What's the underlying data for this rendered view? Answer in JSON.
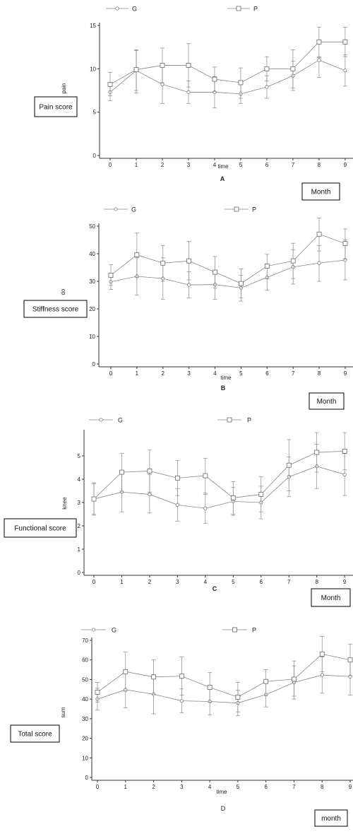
{
  "chart_data": [
    {
      "type": "line",
      "panel": "A",
      "box_label": "Pain score",
      "unit_label": "Month",
      "xlabel": "time",
      "ylabel": "pain",
      "x": [
        0,
        1,
        2,
        3,
        4,
        5,
        6,
        7,
        8,
        9
      ],
      "ylim": [
        0,
        15
      ],
      "yticks": [
        0,
        5,
        10,
        15
      ],
      "legend": "top",
      "series": [
        {
          "name": "G",
          "marker": "circle",
          "values": [
            7.3,
            9.8,
            8.2,
            7.3,
            7.3,
            7.1,
            7.9,
            9.2,
            11.0,
            9.8
          ],
          "lower": [
            6.3,
            7.5,
            6.0,
            6.0,
            5.5,
            6.0,
            6.6,
            7.5,
            9.0,
            8.0
          ],
          "upper": [
            8.3,
            12.1,
            10.4,
            8.6,
            9.1,
            8.2,
            9.2,
            10.9,
            11.4,
            11.6
          ]
        },
        {
          "name": "P",
          "marker": "square",
          "values": [
            8.2,
            9.9,
            10.4,
            10.4,
            8.8,
            8.4,
            10.0,
            10.0,
            13.1,
            13.1
          ],
          "lower": [
            6.9,
            7.2,
            8.4,
            7.9,
            7.4,
            6.6,
            8.6,
            7.8,
            11.3,
            11.4
          ],
          "upper": [
            9.6,
            12.2,
            12.4,
            12.9,
            10.2,
            10.1,
            11.4,
            12.2,
            14.8,
            14.8
          ]
        }
      ]
    },
    {
      "type": "line",
      "panel": "B",
      "box_label": "Stiffness  score",
      "unit_label": "Month",
      "xlabel": "time",
      "ylabel": "do",
      "x": [
        0,
        1,
        2,
        3,
        4,
        5,
        6,
        7,
        8,
        9
      ],
      "ylim": [
        0,
        50
      ],
      "yticks": [
        0,
        10,
        20,
        30,
        40,
        50
      ],
      "legend": "top",
      "series": [
        {
          "name": "G",
          "marker": "circle",
          "values": [
            29.8,
            31.8,
            31.0,
            28.7,
            28.8,
            27.6,
            31.4,
            35.2,
            36.6,
            37.7
          ],
          "lower": [
            27.0,
            25.0,
            23.5,
            24.0,
            23.5,
            22.8,
            26.8,
            29.0,
            30.0,
            30.5
          ],
          "upper": [
            32.5,
            38.5,
            38.5,
            33.5,
            34.0,
            32.2,
            36.0,
            41.5,
            43.0,
            45.0
          ]
        },
        {
          "name": "P",
          "marker": "square",
          "values": [
            32.2,
            39.6,
            36.6,
            37.4,
            33.3,
            29.2,
            35.5,
            37.4,
            47.1,
            43.7
          ],
          "lower": [
            28.5,
            31.5,
            30.0,
            30.5,
            27.5,
            24.0,
            31.0,
            31.0,
            41.0,
            38.0
          ],
          "upper": [
            36.0,
            47.5,
            43.0,
            44.5,
            39.0,
            34.5,
            39.8,
            43.8,
            53.0,
            49.0
          ]
        }
      ]
    },
    {
      "type": "line",
      "panel": "C",
      "box_label": "Functional score",
      "unit_label": "Month",
      "xlabel": "",
      "ylabel": "knee",
      "x": [
        0,
        1,
        2,
        3,
        4,
        5,
        6,
        7,
        8,
        9
      ],
      "ylim": [
        0,
        6
      ],
      "yticks": [
        0,
        1,
        2,
        3,
        4,
        5
      ],
      "legend": "top",
      "series": [
        {
          "name": "G",
          "marker": "circle",
          "values": [
            3.15,
            3.45,
            3.35,
            2.9,
            2.75,
            3.05,
            3.0,
            4.1,
            4.55,
            4.2
          ],
          "lower": [
            2.45,
            2.6,
            2.55,
            2.2,
            2.1,
            2.45,
            2.3,
            3.25,
            3.6,
            3.3
          ],
          "upper": [
            3.85,
            4.3,
            4.2,
            3.6,
            3.4,
            3.65,
            3.7,
            4.95,
            5.5,
            5.1
          ]
        },
        {
          "name": "P",
          "marker": "square",
          "values": [
            3.15,
            4.3,
            4.35,
            4.05,
            4.15,
            3.2,
            3.35,
            4.6,
            5.15,
            5.2
          ],
          "lower": [
            2.5,
            3.45,
            3.45,
            3.3,
            3.35,
            2.5,
            2.6,
            3.5,
            4.3,
            4.4
          ],
          "upper": [
            3.8,
            5.1,
            5.25,
            4.8,
            4.9,
            3.9,
            4.1,
            5.7,
            6.0,
            6.0
          ]
        }
      ]
    },
    {
      "type": "line",
      "panel": "D",
      "box_label": "Total score",
      "unit_label": "month",
      "xlabel": "time",
      "ylabel": "sum",
      "x": [
        0,
        1,
        2,
        3,
        4,
        5,
        6,
        7,
        8,
        9
      ],
      "ylim": [
        0,
        70
      ],
      "yticks": [
        0,
        10,
        20,
        30,
        40,
        50,
        60,
        70
      ],
      "legend": "top",
      "series": [
        {
          "name": "G",
          "marker": "circle",
          "values": [
            40.0,
            44.8,
            42.5,
            39.1,
            38.8,
            38.0,
            42.3,
            48.5,
            52.3,
            51.5
          ],
          "lower": [
            34.5,
            35.5,
            32.5,
            33.0,
            32.0,
            31.5,
            36.0,
            40.0,
            43.0,
            42.0
          ],
          "upper": [
            45.5,
            54.0,
            52.5,
            45.2,
            45.5,
            44.5,
            48.5,
            57.0,
            61.5,
            61.0
          ]
        },
        {
          "name": "P",
          "marker": "square",
          "values": [
            43.5,
            54.0,
            51.3,
            51.7,
            46.0,
            41.0,
            49.0,
            50.2,
            63.0,
            60.0
          ],
          "lower": [
            38.5,
            44.0,
            42.5,
            42.0,
            38.5,
            33.5,
            42.0,
            41.5,
            54.0,
            52.0
          ],
          "upper": [
            48.5,
            64.0,
            60.0,
            61.5,
            53.5,
            48.5,
            55.0,
            59.5,
            72.0,
            68.0
          ]
        }
      ]
    }
  ]
}
